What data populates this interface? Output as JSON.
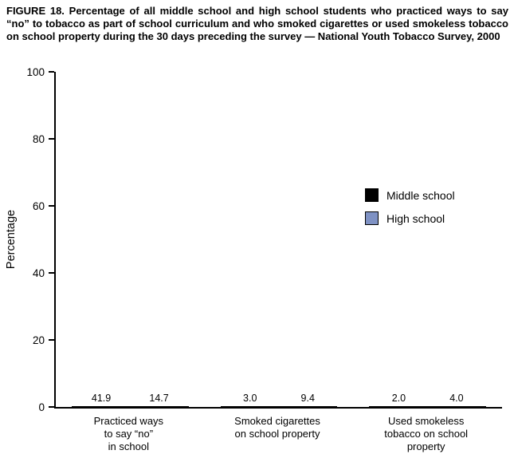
{
  "title": "FIGURE 18. Percentage of all middle school and high school students who practiced ways to say “no” to tobacco as part of school curriculum and who smoked cigarettes or used smokeless tobacco on school property during the 30 days preceding the survey — National Youth Tobacco Survey, 2000",
  "chart_data": {
    "type": "bar",
    "title": "FIGURE 18. Percentage of all middle school and high school students who practiced ways to say “no” to tobacco as part of school curriculum and who smoked cigarettes or used smokeless tobacco on school property during the 30 days preceding the survey — National Youth Tobacco Survey, 2000",
    "categories": [
      "Practiced ways\nto say “no”\nin school",
      "Smoked cigarettes\non school property",
      "Used smokeless\ntobacco on school\nproperty"
    ],
    "series": [
      {
        "name": "Middle school",
        "color": "#000000",
        "values": [
          41.9,
          3.0,
          2.0
        ],
        "labels": [
          "41.9",
          "3.0",
          "2.0"
        ]
      },
      {
        "name": "High school",
        "color": "#7f92c4",
        "values": [
          14.7,
          9.4,
          4.0
        ],
        "labels": [
          "14.7",
          "9.4",
          "4.0"
        ]
      }
    ],
    "xlabel": "",
    "ylabel": "Percentage",
    "ylim": [
      0,
      100
    ],
    "yticks": [
      0,
      20,
      40,
      60,
      80,
      100
    ],
    "grid": false,
    "legend_position": "inside-upper-right"
  }
}
